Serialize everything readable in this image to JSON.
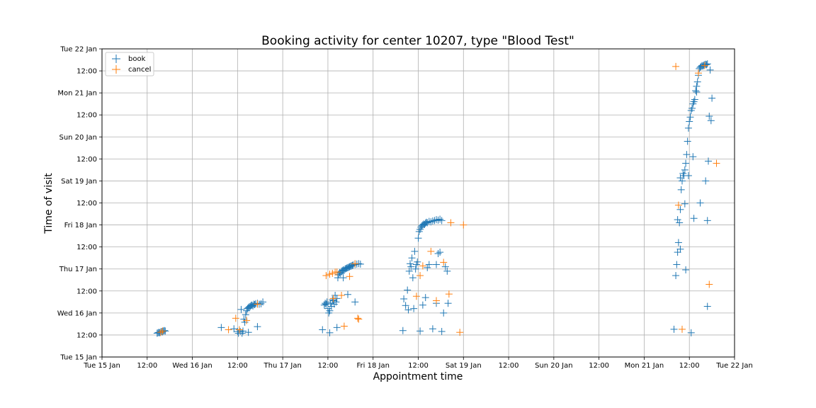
{
  "chart_data": {
    "type": "scatter",
    "title": "Booking activity for center 10207,  type \"Blood Test\"",
    "xlabel": "Appointment time",
    "ylabel": "Time of visit",
    "x_unit": "days since Tue 15 Jan 00:00",
    "y_unit": "days since Tue 15 Jan 00:00",
    "xlim": [
      0,
      7
    ],
    "ylim": [
      0,
      7
    ],
    "grid": true,
    "legend_position": "top-left",
    "x_ticks": [
      {
        "value": 0,
        "label": "Tue 15 Jan"
      },
      {
        "value": 0.5,
        "label": "12:00"
      },
      {
        "value": 1,
        "label": "Wed 16 Jan"
      },
      {
        "value": 1.5,
        "label": "12:00"
      },
      {
        "value": 2,
        "label": "Thu 17 Jan"
      },
      {
        "value": 2.5,
        "label": "12:00"
      },
      {
        "value": 3,
        "label": "Fri 18 Jan"
      },
      {
        "value": 3.5,
        "label": "12:00"
      },
      {
        "value": 4,
        "label": "Sat 19 Jan"
      },
      {
        "value": 4.5,
        "label": "12:00"
      },
      {
        "value": 5,
        "label": "Sun 20 Jan"
      },
      {
        "value": 5.5,
        "label": "12:00"
      },
      {
        "value": 6,
        "label": "Mon 21 Jan"
      },
      {
        "value": 6.5,
        "label": "12:00"
      },
      {
        "value": 7,
        "label": "Tue 22 Jan"
      }
    ],
    "y_ticks": [
      {
        "value": 0,
        "label": "Tue 15 Jan"
      },
      {
        "value": 0.5,
        "label": "12:00"
      },
      {
        "value": 1,
        "label": "Wed 16 Jan"
      },
      {
        "value": 1.5,
        "label": "12:00"
      },
      {
        "value": 2,
        "label": "Thu 17 Jan"
      },
      {
        "value": 2.5,
        "label": "12:00"
      },
      {
        "value": 3,
        "label": "Fri 18 Jan"
      },
      {
        "value": 3.5,
        "label": "12:00"
      },
      {
        "value": 4,
        "label": "Sat 19 Jan"
      },
      {
        "value": 4.5,
        "label": "12:00"
      },
      {
        "value": 5,
        "label": "Sun 20 Jan"
      },
      {
        "value": 5.5,
        "label": "12:00"
      },
      {
        "value": 6,
        "label": "Mon 21 Jan"
      },
      {
        "value": 6.5,
        "label": "12:00"
      },
      {
        "value": 7,
        "label": "Tue 22 Jan"
      }
    ],
    "series": [
      {
        "name": "book",
        "color": "#1f77b4",
        "marker": "plus",
        "points": [
          [
            0.61,
            0.54
          ],
          [
            0.62,
            0.55
          ],
          [
            0.63,
            0.56
          ],
          [
            0.64,
            0.55
          ],
          [
            0.65,
            0.57
          ],
          [
            0.66,
            0.58
          ],
          [
            0.67,
            0.57
          ],
          [
            0.68,
            0.59
          ],
          [
            0.69,
            0.6
          ],
          [
            0.7,
            0.59
          ],
          [
            1.32,
            0.67
          ],
          [
            1.46,
            0.64
          ],
          [
            1.5,
            0.58
          ],
          [
            1.51,
            0.54
          ],
          [
            1.53,
            0.58
          ],
          [
            1.55,
            0.54
          ],
          [
            1.56,
            0.59
          ],
          [
            1.57,
            0.86
          ],
          [
            1.58,
            0.79
          ],
          [
            1.59,
            0.96
          ],
          [
            1.6,
            1.05
          ],
          [
            1.61,
            1.1
          ],
          [
            1.62,
            1.12
          ],
          [
            1.63,
            1.14
          ],
          [
            1.64,
            1.15
          ],
          [
            1.65,
            1.17
          ],
          [
            1.66,
            1.18
          ],
          [
            1.67,
            1.16
          ],
          [
            1.68,
            1.2
          ],
          [
            1.69,
            1.19
          ],
          [
            1.7,
            1.21
          ],
          [
            1.72,
            1.22
          ],
          [
            1.74,
            1.2
          ],
          [
            1.76,
            1.21
          ],
          [
            1.78,
            1.25
          ],
          [
            1.54,
            1.08
          ],
          [
            1.62,
            0.56
          ],
          [
            1.72,
            0.69
          ],
          [
            2.44,
            0.62
          ],
          [
            2.46,
            1.18
          ],
          [
            2.47,
            1.22
          ],
          [
            2.48,
            1.2
          ],
          [
            2.49,
            1.25
          ],
          [
            2.5,
            1.1
          ],
          [
            2.51,
            1.0
          ],
          [
            2.52,
            1.05
          ],
          [
            2.53,
            1.22
          ],
          [
            2.54,
            1.15
          ],
          [
            2.55,
            1.3
          ],
          [
            2.56,
            1.28
          ],
          [
            2.57,
            1.2
          ],
          [
            2.58,
            1.4
          ],
          [
            2.59,
            1.25
          ],
          [
            2.6,
            1.33
          ],
          [
            2.61,
            1.8
          ],
          [
            2.62,
            1.87
          ],
          [
            2.63,
            1.92
          ],
          [
            2.64,
            1.9
          ],
          [
            2.65,
            1.95
          ],
          [
            2.66,
            1.96
          ],
          [
            2.67,
            1.98
          ],
          [
            2.68,
            1.97
          ],
          [
            2.69,
            2.0
          ],
          [
            2.7,
            2.01
          ],
          [
            2.71,
            2.02
          ],
          [
            2.72,
            2.03
          ],
          [
            2.73,
            2.04
          ],
          [
            2.74,
            2.05
          ],
          [
            2.75,
            2.06
          ],
          [
            2.76,
            2.07
          ],
          [
            2.77,
            2.08
          ],
          [
            2.78,
            2.09
          ],
          [
            2.8,
            2.1
          ],
          [
            2.82,
            2.11
          ],
          [
            2.84,
            2.12
          ],
          [
            2.86,
            2.11
          ],
          [
            2.52,
            0.55
          ],
          [
            2.6,
            0.67
          ],
          [
            2.67,
            1.8
          ],
          [
            2.72,
            1.42
          ],
          [
            2.8,
            1.25
          ],
          [
            3.33,
            0.6
          ],
          [
            3.34,
            1.32
          ],
          [
            3.36,
            1.17
          ],
          [
            3.38,
            1.52
          ],
          [
            3.39,
            1.07
          ],
          [
            3.4,
            1.95
          ],
          [
            3.41,
            2.12
          ],
          [
            3.42,
            2.05
          ],
          [
            3.43,
            2.25
          ],
          [
            3.44,
            1.8
          ],
          [
            3.45,
            1.1
          ],
          [
            3.46,
            2.4
          ],
          [
            3.47,
            2.0
          ],
          [
            3.48,
            2.1
          ],
          [
            3.49,
            2.16
          ],
          [
            3.5,
            2.7
          ],
          [
            3.51,
            2.85
          ],
          [
            3.52,
            2.9
          ],
          [
            3.53,
            2.95
          ],
          [
            3.54,
            2.98
          ],
          [
            3.55,
            3.0
          ],
          [
            3.56,
            3.02
          ],
          [
            3.57,
            3.01
          ],
          [
            3.58,
            3.04
          ],
          [
            3.59,
            3.06
          ],
          [
            3.6,
            3.05
          ],
          [
            3.62,
            3.08
          ],
          [
            3.64,
            3.07
          ],
          [
            3.66,
            3.09
          ],
          [
            3.68,
            3.1
          ],
          [
            3.7,
            3.12
          ],
          [
            3.72,
            3.11
          ],
          [
            3.74,
            3.13
          ],
          [
            3.76,
            3.1
          ],
          [
            3.52,
            0.59
          ],
          [
            3.55,
            1.18
          ],
          [
            3.58,
            1.35
          ],
          [
            3.62,
            2.1
          ],
          [
            3.66,
            0.64
          ],
          [
            3.7,
            1.22
          ],
          [
            3.72,
            2.35
          ],
          [
            3.74,
            2.38
          ],
          [
            3.76,
            0.58
          ],
          [
            3.78,
            1.0
          ],
          [
            3.8,
            2.05
          ],
          [
            3.82,
            1.95
          ],
          [
            3.83,
            1.22
          ],
          [
            3.7,
            2.1
          ],
          [
            3.6,
            2.03
          ],
          [
            6.33,
            0.63
          ],
          [
            6.35,
            1.85
          ],
          [
            6.36,
            2.1
          ],
          [
            6.37,
            2.38
          ],
          [
            6.38,
            2.6
          ],
          [
            6.39,
            3.05
          ],
          [
            6.4,
            3.35
          ],
          [
            6.41,
            3.8
          ],
          [
            6.42,
            4.0
          ],
          [
            6.43,
            4.17
          ],
          [
            6.44,
            4.12
          ],
          [
            6.45,
            4.25
          ],
          [
            6.46,
            4.4
          ],
          [
            6.47,
            4.6
          ],
          [
            6.48,
            4.9
          ],
          [
            6.49,
            5.2
          ],
          [
            6.5,
            5.35
          ],
          [
            6.51,
            5.45
          ],
          [
            6.52,
            5.6
          ],
          [
            6.53,
            5.65
          ],
          [
            6.54,
            5.75
          ],
          [
            6.55,
            5.8
          ],
          [
            6.56,
            5.85
          ],
          [
            6.57,
            6.05
          ],
          [
            6.58,
            6.15
          ],
          [
            6.59,
            6.25
          ],
          [
            6.6,
            6.4
          ],
          [
            6.61,
            6.55
          ],
          [
            6.62,
            6.58
          ],
          [
            6.63,
            6.6
          ],
          [
            6.64,
            6.62
          ],
          [
            6.65,
            6.61
          ],
          [
            6.66,
            6.63
          ],
          [
            6.67,
            6.64
          ],
          [
            6.68,
            6.65
          ],
          [
            6.69,
            6.64
          ],
          [
            6.7,
            6.66
          ],
          [
            6.52,
            0.55
          ],
          [
            6.4,
            2.45
          ],
          [
            6.46,
            1.98
          ],
          [
            6.55,
            3.15
          ],
          [
            6.7,
            1.15
          ],
          [
            6.71,
            4.45
          ],
          [
            6.72,
            5.47
          ],
          [
            6.74,
            5.37
          ],
          [
            6.75,
            5.88
          ],
          [
            6.73,
            6.52
          ],
          [
            6.7,
            3.1
          ],
          [
            6.68,
            4.0
          ],
          [
            6.62,
            3.5
          ],
          [
            6.54,
            4.55
          ],
          [
            6.49,
            4.12
          ],
          [
            6.45,
            3.48
          ],
          [
            6.4,
            4.07
          ],
          [
            6.37,
            3.12
          ],
          [
            6.58,
            6.02
          ]
        ]
      },
      {
        "name": "cancel",
        "color": "#ff7f0e",
        "marker": "plus",
        "points": [
          [
            0.65,
            0.56
          ],
          [
            0.67,
            0.59
          ],
          [
            1.4,
            0.62
          ],
          [
            1.52,
            0.62
          ],
          [
            1.48,
            0.88
          ],
          [
            1.6,
            0.83
          ],
          [
            1.72,
            1.2
          ],
          [
            2.48,
            1.85
          ],
          [
            2.52,
            1.88
          ],
          [
            2.55,
            1.9
          ],
          [
            2.58,
            1.93
          ],
          [
            2.6,
            1.93
          ],
          [
            2.74,
            1.83
          ],
          [
            2.8,
            2.12
          ],
          [
            2.56,
            1.33
          ],
          [
            2.65,
            1.4
          ],
          [
            2.68,
            0.7
          ],
          [
            2.83,
            0.88
          ],
          [
            2.84,
            0.86
          ],
          [
            3.48,
            1.38
          ],
          [
            3.52,
            1.85
          ],
          [
            3.55,
            2.07
          ],
          [
            3.64,
            2.4
          ],
          [
            3.7,
            1.28
          ],
          [
            3.84,
            1.43
          ],
          [
            3.78,
            2.15
          ],
          [
            3.86,
            3.05
          ],
          [
            3.96,
            0.56
          ],
          [
            4.0,
            3.0
          ],
          [
            6.38,
            3.45
          ],
          [
            6.42,
            0.63
          ],
          [
            6.6,
            6.45
          ],
          [
            6.67,
            6.62
          ],
          [
            6.72,
            1.65
          ],
          [
            6.8,
            4.4
          ],
          [
            6.35,
            6.6
          ]
        ]
      }
    ]
  }
}
